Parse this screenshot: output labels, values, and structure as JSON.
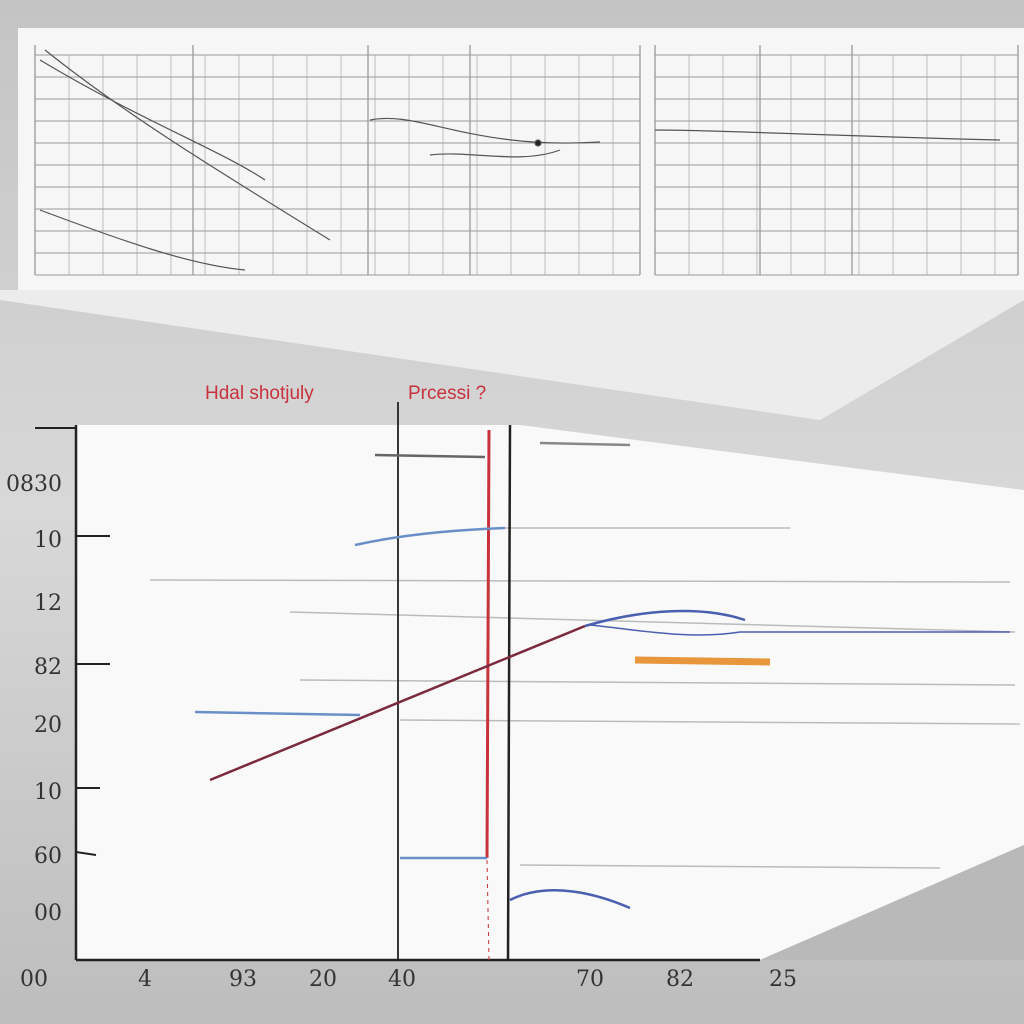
{
  "annotations": {
    "left": "Hdal shotjuly",
    "right": "Prcessi ?"
  },
  "y_labels": [
    "0830",
    "10",
    "12",
    "82",
    "20",
    "10",
    "60",
    "00"
  ],
  "x_labels": [
    "00",
    "4",
    "93",
    "20",
    "40",
    "70",
    "82",
    "25"
  ]
}
